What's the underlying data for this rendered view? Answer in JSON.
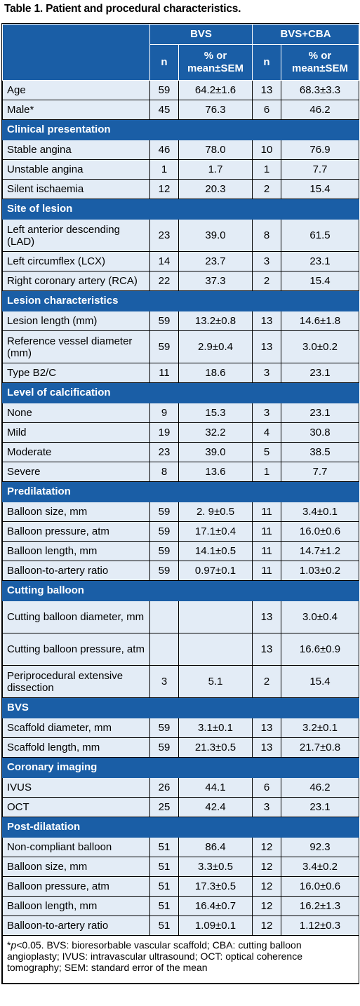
{
  "caption": "Table 1. Patient and procedural characteristics.",
  "header": {
    "group1": "BVS",
    "group2": "BVS+CBA",
    "n_label": "n",
    "value_label_line1": "% or",
    "value_label_line2": "mean±SEM"
  },
  "rows": [
    {
      "type": "data",
      "label": "Age",
      "n1": "59",
      "v1": "64.2±1.6",
      "n2": "13",
      "v2": "68.3±3.3"
    },
    {
      "type": "data",
      "label": "Male*",
      "n1": "45",
      "v1": "76.3",
      "n2": "6",
      "v2": "46.2"
    },
    {
      "type": "section",
      "label": "Clinical presentation"
    },
    {
      "type": "data",
      "label": "Stable angina",
      "n1": "46",
      "v1": "78.0",
      "n2": "10",
      "v2": "76.9"
    },
    {
      "type": "data",
      "label": "Unstable angina",
      "n1": "1",
      "v1": "1.7",
      "n2": "1",
      "v2": "7.7"
    },
    {
      "type": "data",
      "label": "Silent ischaemia",
      "n1": "12",
      "v1": "20.3",
      "n2": "2",
      "v2": "15.4"
    },
    {
      "type": "section",
      "label": "Site of lesion"
    },
    {
      "type": "data",
      "tall": true,
      "label": "Left anterior descending (LAD)",
      "n1": "23",
      "v1": "39.0",
      "n2": "8",
      "v2": "61.5"
    },
    {
      "type": "data",
      "label": "Left circumflex (LCX)",
      "n1": "14",
      "v1": "23.7",
      "n2": "3",
      "v2": "23.1"
    },
    {
      "type": "data",
      "label": "Right coronary artery (RCA)",
      "n1": "22",
      "v1": "37.3",
      "n2": "2",
      "v2": "15.4"
    },
    {
      "type": "section",
      "label": "Lesion characteristics"
    },
    {
      "type": "data",
      "label": "Lesion length (mm)",
      "n1": "59",
      "v1": "13.2±0.8",
      "n2": "13",
      "v2": "14.6±1.8"
    },
    {
      "type": "data",
      "tall": true,
      "label": "Reference vessel diameter (mm)",
      "n1": "59",
      "v1": "2.9±0.4",
      "n2": "13",
      "v2": "3.0±0.2"
    },
    {
      "type": "data",
      "label": "Type B2/C",
      "n1": "11",
      "v1": "18.6",
      "n2": "3",
      "v2": "23.1"
    },
    {
      "type": "section",
      "label": "Level of calcification"
    },
    {
      "type": "data",
      "label": "None",
      "n1": "9",
      "v1": "15.3",
      "n2": "3",
      "v2": "23.1"
    },
    {
      "type": "data",
      "label": "Mild",
      "n1": "19",
      "v1": "32.2",
      "n2": "4",
      "v2": "30.8"
    },
    {
      "type": "data",
      "label": "Moderate",
      "n1": "23",
      "v1": "39.0",
      "n2": "5",
      "v2": "38.5"
    },
    {
      "type": "data",
      "label": "Severe",
      "n1": "8",
      "v1": "13.6",
      "n2": "1",
      "v2": "7.7"
    },
    {
      "type": "section",
      "label": "Predilatation"
    },
    {
      "type": "data",
      "label": "Balloon size, mm",
      "n1": "59",
      "v1": "2. 9±0.5",
      "n2": "11",
      "v2": "3.4±0.1"
    },
    {
      "type": "data",
      "label": "Balloon pressure, atm",
      "n1": "59",
      "v1": "17.1±0.4",
      "n2": "11",
      "v2": "16.0±0.6"
    },
    {
      "type": "data",
      "label": "Balloon length, mm",
      "n1": "59",
      "v1": "14.1±0.5",
      "n2": "11",
      "v2": "14.7±1.2"
    },
    {
      "type": "data",
      "label": "Balloon-to-artery ratio",
      "n1": "59",
      "v1": "0.97±0.1",
      "n2": "11",
      "v2": "1.03±0.2"
    },
    {
      "type": "section",
      "label": "Cutting balloon"
    },
    {
      "type": "data",
      "tall": true,
      "label": "Cutting balloon diameter, mm",
      "n1": "",
      "v1": "",
      "n2": "13",
      "v2": "3.0±0.4"
    },
    {
      "type": "data",
      "tall": true,
      "label": "Cutting balloon pressure, atm",
      "n1": "",
      "v1": "",
      "n2": "13",
      "v2": "16.6±0.9"
    },
    {
      "type": "data",
      "tall": true,
      "label": "Periprocedural extensive dissection",
      "n1": "3",
      "v1": "5.1",
      "n2": "2",
      "v2": "15.4"
    },
    {
      "type": "section",
      "label": "BVS"
    },
    {
      "type": "data",
      "label": "Scaffold diameter, mm",
      "n1": "59",
      "v1": "3.1±0.1",
      "n2": "13",
      "v2": "3.2±0.1"
    },
    {
      "type": "data",
      "label": "Scaffold length, mm",
      "n1": "59",
      "v1": "21.3±0.5",
      "n2": "13",
      "v2": "21.7±0.8"
    },
    {
      "type": "section",
      "label": "Coronary imaging"
    },
    {
      "type": "data",
      "label": "IVUS",
      "n1": "26",
      "v1": "44.1",
      "n2": "6",
      "v2": "46.2"
    },
    {
      "type": "data",
      "label": "OCT",
      "n1": "25",
      "v1": "42.4",
      "n2": "3",
      "v2": "23.1"
    },
    {
      "type": "section",
      "label": "Post-dilatation"
    },
    {
      "type": "data",
      "label": "Non-compliant balloon",
      "n1": "51",
      "v1": "86.4",
      "n2": "12",
      "v2": "92.3"
    },
    {
      "type": "data",
      "label": "Balloon size, mm",
      "n1": "51",
      "v1": "3.3±0.5",
      "n2": "12",
      "v2": "3.4±0.2"
    },
    {
      "type": "data",
      "label": "Balloon pressure, atm",
      "n1": "51",
      "v1": "17.3±0.5",
      "n2": "12",
      "v2": "16.0±0.6"
    },
    {
      "type": "data",
      "label": "Balloon length, mm",
      "n1": "51",
      "v1": "16.4±0.7",
      "n2": "12",
      "v2": "16.2±1.3"
    },
    {
      "type": "data",
      "label": "Balloon-to-artery ratio",
      "n1": "51",
      "v1": "1.09±0.1",
      "n2": "12",
      "v2": "1.12±0.3"
    }
  ],
  "footnote": {
    "marker": "*",
    "p_italic": "p",
    "text": "<0.05. BVS: bioresorbable vascular scaffold; CBA: cutting balloon angioplasty; IVUS: intravascular ultrasound; OCT: optical coherence tomography; SEM: standard error of the mean"
  },
  "colors": {
    "header_blue": "#1a5ea6",
    "row_fill": "#e3ecf6"
  }
}
